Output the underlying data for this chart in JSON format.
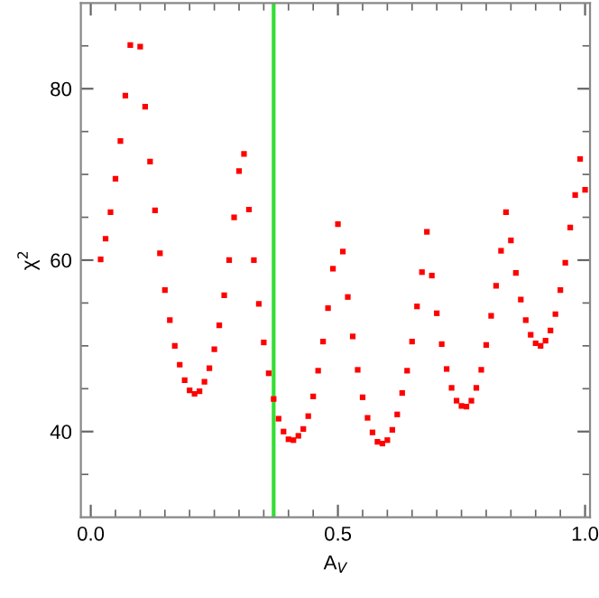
{
  "chart_data": {
    "type": "scatter",
    "xlabel": "A$_{V}$",
    "ylabel": "χ$^{2}$",
    "x": [
      0.02,
      0.03,
      0.04,
      0.05,
      0.06,
      0.07,
      0.08,
      0.1,
      0.11,
      0.12,
      0.13,
      0.14,
      0.15,
      0.16,
      0.17,
      0.18,
      0.19,
      0.2,
      0.21,
      0.22,
      0.23,
      0.24,
      0.25,
      0.26,
      0.27,
      0.28,
      0.29,
      0.3,
      0.31,
      0.32,
      0.33,
      0.34,
      0.35,
      0.36,
      0.37,
      0.38,
      0.39,
      0.4,
      0.41,
      0.42,
      0.43,
      0.44,
      0.45,
      0.46,
      0.47,
      0.48,
      0.49,
      0.5,
      0.51,
      0.52,
      0.53,
      0.54,
      0.55,
      0.56,
      0.57,
      0.58,
      0.59,
      0.6,
      0.61,
      0.62,
      0.63,
      0.64,
      0.65,
      0.66,
      0.67,
      0.68,
      0.69,
      0.7,
      0.71,
      0.72,
      0.73,
      0.74,
      0.75,
      0.76,
      0.77,
      0.78,
      0.79,
      0.8,
      0.81,
      0.82,
      0.83,
      0.84,
      0.85,
      0.86,
      0.87,
      0.88,
      0.89,
      0.9,
      0.91,
      0.92,
      0.93,
      0.94,
      0.95,
      0.96,
      0.97,
      0.98,
      0.99,
      1.0
    ],
    "series": [
      {
        "color": "#ff0000",
        "values": [
          60.1,
          62.5,
          65.6,
          69.5,
          73.9,
          79.2,
          85.1,
          84.9,
          77.9,
          71.5,
          65.8,
          60.8,
          56.5,
          53.0,
          50.0,
          47.8,
          46.0,
          44.8,
          44.4,
          44.7,
          45.8,
          47.4,
          49.6,
          52.4,
          55.9,
          60.0,
          65.0,
          70.4,
          72.4,
          65.9,
          60.0,
          54.9,
          50.4,
          46.8,
          43.8,
          41.5,
          40.0,
          39.1,
          39.0,
          39.5,
          40.3,
          41.8,
          44.1,
          47.1,
          50.5,
          54.4,
          59.0,
          64.2,
          61.0,
          55.7,
          51.1,
          47.2,
          44.0,
          41.6,
          39.9,
          38.8,
          38.6,
          39.0,
          40.2,
          42.0,
          44.5,
          47.1,
          50.5,
          54.6,
          58.6,
          63.3,
          58.2,
          53.8,
          50.2,
          47.3,
          45.1,
          43.6,
          43.0,
          42.9,
          43.6,
          45.1,
          47.2,
          50.1,
          53.5,
          57.0,
          61.1,
          65.6,
          62.3,
          58.5,
          55.4,
          53.0,
          51.3,
          50.3,
          50.0,
          50.6,
          51.8,
          53.7,
          56.5,
          59.7,
          63.8,
          67.6,
          71.8,
          68.2
        ]
      }
    ],
    "marker": "square",
    "xlim": [
      -0.02,
      1.01
    ],
    "xticks": [
      {
        "value": 0.0,
        "label": "0.0"
      },
      {
        "value": 0.05,
        "label": null
      },
      {
        "value": 0.1,
        "label": null
      },
      {
        "value": 0.15,
        "label": null
      },
      {
        "value": 0.2,
        "label": null
      },
      {
        "value": 0.25,
        "label": null
      },
      {
        "value": 0.3,
        "label": null
      },
      {
        "value": 0.35,
        "label": null
      },
      {
        "value": 0.4,
        "label": null
      },
      {
        "value": 0.45,
        "label": null
      },
      {
        "value": 0.5,
        "label": "0.5"
      },
      {
        "value": 0.55,
        "label": null
      },
      {
        "value": 0.6,
        "label": null
      },
      {
        "value": 0.65,
        "label": null
      },
      {
        "value": 0.7,
        "label": null
      },
      {
        "value": 0.75,
        "label": null
      },
      {
        "value": 0.8,
        "label": null
      },
      {
        "value": 0.85,
        "label": null
      },
      {
        "value": 0.9,
        "label": null
      },
      {
        "value": 0.95,
        "label": null
      },
      {
        "value": 1.0,
        "label": "1.0"
      }
    ],
    "ylim": [
      30,
      90
    ],
    "yticks": [
      {
        "value": 35,
        "label": null
      },
      40,
      {
        "value": 45,
        "label": null
      },
      {
        "value": 50,
        "label": null
      },
      {
        "value": 55,
        "label": null
      },
      60,
      {
        "value": 65,
        "label": null
      },
      {
        "value": 70,
        "label": null
      },
      {
        "value": 75,
        "label": null
      },
      80,
      {
        "value": 85,
        "label": null
      }
    ],
    "ref_lines": [
      {
        "axis": "x",
        "value": 0.37,
        "color": "#33dd33",
        "line_style": "solid"
      }
    ],
    "grid": false,
    "legend": false
  }
}
